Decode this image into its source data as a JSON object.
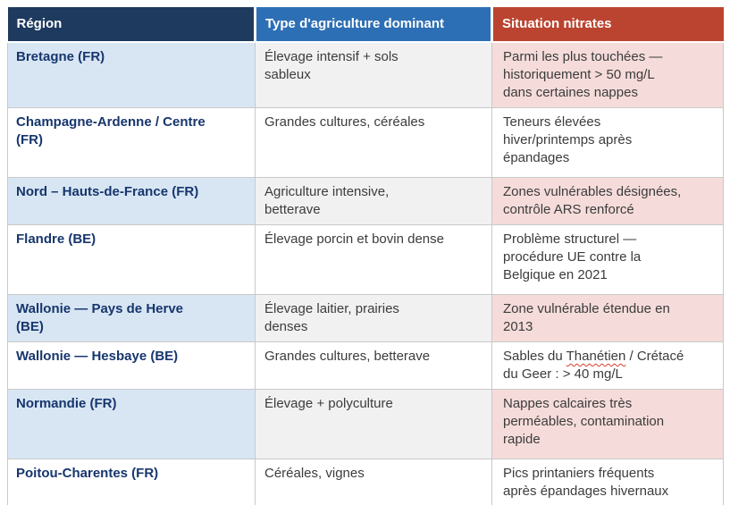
{
  "table": {
    "columns": [
      {
        "label": "Région"
      },
      {
        "label": "Type d'agriculture dominant"
      },
      {
        "label": "Situation nitrates"
      }
    ],
    "rows": [
      {
        "region": "Bretagne (FR)",
        "agriculture": "Élevage intensif + sols\nsableux",
        "nitrates": "Parmi les plus touchées —\nhistoriquement > 50 mg/L\ndans certaines nappes"
      },
      {
        "region": "Champagne-Ardenne / Centre\n(FR)",
        "agriculture": "Grandes cultures, céréales",
        "nitrates": "Teneurs élevées\nhiver/printemps après\népandages"
      },
      {
        "region": "Nord – Hauts-de-France (FR)",
        "agriculture": "Agriculture intensive,\nbetterave",
        "nitrates": "Zones vulnérables désignées,\ncontrôle ARS renforcé"
      },
      {
        "region": "Flandre (BE)",
        "agriculture": "Élevage porcin et bovin dense",
        "nitrates": "Problème structurel —\nprocédure UE contre la\nBelgique en 2021"
      },
      {
        "region": "Wallonie — Pays de Herve\n(BE)",
        "agriculture": "Élevage laitier, prairies\ndenses",
        "nitrates": "Zone vulnérable étendue en\n2013"
      },
      {
        "region": "Wallonie — Hesbaye (BE)",
        "agriculture": "Grandes cultures, betterave",
        "nitrates_before": "Sables du ",
        "nitrates_word": "Thanétien",
        "nitrates_after": " / Crétacé\ndu Geer : > 40 mg/L"
      },
      {
        "region": "Normandie (FR)",
        "agriculture": "Élevage + polyculture",
        "nitrates": "Nappes calcaires très\nperméables, contamination\nrapide"
      },
      {
        "region": "Poitou-Charentes (FR)",
        "agriculture": "Céréales, vignes",
        "nitrates": "Pics printaniers fréquents\naprès épandages hivernaux"
      }
    ]
  },
  "colors": {
    "header_region_bg": "#1e3a5f",
    "header_agriculture_bg": "#2d6fb4",
    "header_nitrates_bg": "#bb4430",
    "tint_region": "#d8e6f4",
    "tint_agriculture": "#f1f1f1",
    "tint_nitrates": "#f5dcda",
    "region_text": "#17366d",
    "body_text": "#3c3c3c",
    "cell_border": "#c9c9c9",
    "spellcheck_underline": "#d3402e"
  }
}
